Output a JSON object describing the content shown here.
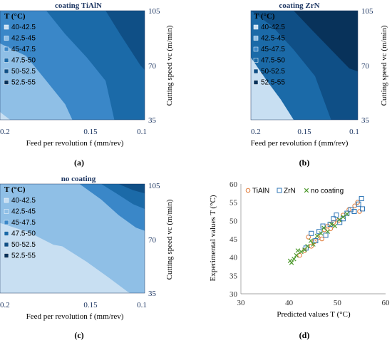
{
  "chart_data": [
    {
      "type": "contour",
      "title": "coating TiAlN",
      "panel_label": "(a)",
      "xlabel": "Feed per revolution f (mm/rev)",
      "ylabel": "Cutting speed vc (m/min)",
      "xlim": [
        0.2,
        0.1
      ],
      "x_ticks": [
        "0.2",
        "0.15",
        "0.1"
      ],
      "ylim": [
        35,
        105
      ],
      "y_ticks": [
        "105",
        "70",
        "35"
      ],
      "legend_title": "T (°C)",
      "levels": [
        "40-42.5",
        "42.5-45",
        "45-47.5",
        "47.5-50",
        "50-52.5",
        "52.5-55"
      ],
      "level_colors": [
        "#c8dff2",
        "#8fbfe6",
        "#3a87c8",
        "#1b6aa8",
        "#0f4f86",
        "#08325a"
      ],
      "boundaries": [
        {
          "level_index": 1,
          "points": [
            [
              0.2,
              46
            ],
            [
              0.2,
              40
            ],
            [
              0.193,
              35
            ]
          ]
        },
        {
          "level_index": 2,
          "points": [
            [
              0.2,
              84
            ],
            [
              0.182,
              76
            ],
            [
              0.168,
              60
            ],
            [
              0.155,
              45
            ],
            [
              0.15,
              35
            ]
          ]
        },
        {
          "level_index": 3,
          "points": [
            [
              0.168,
              105
            ],
            [
              0.155,
              90
            ],
            [
              0.14,
              75
            ],
            [
              0.127,
              60
            ],
            [
              0.121,
              35
            ]
          ]
        },
        {
          "level_index": 4,
          "points": [
            [
              0.127,
              105
            ],
            [
              0.117,
              90
            ],
            [
              0.103,
              70
            ],
            [
              0.1,
              67
            ]
          ]
        }
      ]
    },
    {
      "type": "contour",
      "title": "coating ZrN",
      "panel_label": "(b)",
      "xlabel": "Feed per revolution f (mm/rev)",
      "ylabel": "Cutting speed vc (m/min)",
      "xlim": [
        0.2,
        0.1
      ],
      "x_ticks": [
        "0.2",
        "0.15",
        "0.1"
      ],
      "ylim": [
        35,
        105
      ],
      "y_ticks": [
        "105",
        "70",
        "35"
      ],
      "legend_title": "T (°C)",
      "levels": [
        "40-42.5",
        "42.5-45",
        "45-47.5",
        "47.5-50",
        "50-52.5",
        "52.5-55"
      ],
      "level_colors": [
        "#c8dff2",
        "#8fbfe6",
        "#3a87c8",
        "#1b6aa8",
        "#0f4f86",
        "#08325a"
      ],
      "boundaries": [
        {
          "level_index": 3,
          "points": [
            [
              0.2,
              75
            ],
            [
              0.185,
              60
            ],
            [
              0.172,
              48
            ],
            [
              0.16,
              35
            ]
          ]
        },
        {
          "level_index": 4,
          "points": [
            [
              0.2,
              105
            ],
            [
              0.18,
              95
            ],
            [
              0.16,
              80
            ],
            [
              0.14,
              63
            ],
            [
              0.125,
              35
            ]
          ]
        },
        {
          "level_index": 5,
          "points": [
            [
              0.16,
              105
            ],
            [
              0.142,
              92
            ],
            [
              0.125,
              80
            ],
            [
              0.108,
              68
            ],
            [
              0.1,
              66
            ]
          ]
        }
      ]
    },
    {
      "type": "contour",
      "title": "no coating",
      "panel_label": "(c)",
      "xlabel": "Feed per revolution f (mm/rev)",
      "ylabel": "Cutting speed vc (m/min)",
      "xlim": [
        0.2,
        0.1
      ],
      "x_ticks": [
        "0.2",
        "0.15",
        "0.1"
      ],
      "ylim": [
        35,
        105
      ],
      "y_ticks": [
        "105",
        "70",
        "35"
      ],
      "legend_title": "T (°C)",
      "levels": [
        "40-42.5",
        "42.5-45",
        "45-47.5",
        "47.5-50",
        "50-52.5",
        "52.5-55"
      ],
      "level_colors": [
        "#c8dff2",
        "#8fbfe6",
        "#3a87c8",
        "#1b6aa8",
        "#0f4f86",
        "#08325a"
      ],
      "boundaries": [
        {
          "level_index": 1,
          "points": [
            [
              0.2,
              80
            ],
            [
              0.18,
              74
            ],
            [
              0.163,
              66
            ],
            [
              0.157,
              65
            ],
            [
              0.14,
              55
            ],
            [
              0.125,
              45
            ],
            [
              0.112,
              36
            ],
            [
              0.11,
              35
            ]
          ]
        },
        {
          "level_index": 2,
          "points": [
            [
              0.145,
              105
            ],
            [
              0.13,
              95
            ],
            [
              0.118,
              85
            ],
            [
              0.106,
              77
            ],
            [
              0.1,
              75
            ]
          ]
        },
        {
          "level_index": 3,
          "points": [
            [
              0.13,
              105
            ],
            [
              0.118,
              98
            ],
            [
              0.108,
              92
            ],
            [
              0.1,
              89
            ]
          ]
        },
        {
          "level_index": 4,
          "points": [
            [
              0.118,
              105
            ],
            [
              0.108,
              101
            ],
            [
              0.1,
              99
            ]
          ]
        }
      ]
    },
    {
      "type": "scatter",
      "panel_label": "(d)",
      "xlabel": "Predicted values T (°C)",
      "ylabel": "Experimental values T (°C)",
      "xlim": [
        30,
        60
      ],
      "x_ticks": [
        30,
        40,
        50,
        60
      ],
      "ylim": [
        30,
        60
      ],
      "y_ticks": [
        30,
        35,
        40,
        45,
        50,
        55,
        60
      ],
      "legend": "top-left",
      "series": [
        {
          "name": "TiAlN",
          "marker": "circle",
          "color": "#e07b39",
          "points": [
            [
              42.2,
              40.5
            ],
            [
              43.2,
              41.8
            ],
            [
              44.0,
              45.5
            ],
            [
              44.6,
              43.0
            ],
            [
              45.2,
              44.2
            ],
            [
              46.0,
              45.3
            ],
            [
              46.8,
              45.0
            ],
            [
              47.3,
              47.5
            ],
            [
              48.0,
              48.5
            ],
            [
              48.6,
              47.8
            ],
            [
              49.2,
              49.5
            ],
            [
              50.2,
              50.0
            ],
            [
              51.2,
              51.5
            ],
            [
              52.4,
              53.0
            ],
            [
              53.6,
              54.0
            ],
            [
              54.2,
              55.0
            ],
            [
              54.6,
              52.5
            ]
          ]
        },
        {
          "name": "ZrN",
          "marker": "square",
          "color": "#2e75b6",
          "points": [
            [
              43.5,
              42.5
            ],
            [
              44.6,
              46.5
            ],
            [
              45.5,
              44.5
            ],
            [
              46.2,
              47.0
            ],
            [
              47.0,
              48.5
            ],
            [
              47.6,
              46.0
            ],
            [
              48.5,
              49.0
            ],
            [
              49.2,
              50.5
            ],
            [
              49.8,
              51.5
            ],
            [
              50.5,
              49.5
            ],
            [
              51.2,
              50.5
            ],
            [
              52.0,
              52.0
            ],
            [
              52.8,
              53.0
            ],
            [
              53.5,
              52.5
            ],
            [
              54.4,
              54.5
            ],
            [
              55.0,
              56.0
            ],
            [
              55.2,
              53.2
            ]
          ]
        },
        {
          "name": "no coating",
          "marker": "x",
          "color": "#4e9a2e",
          "points": [
            [
              40.2,
              39.0
            ],
            [
              40.5,
              38.5
            ],
            [
              41.0,
              39.5
            ],
            [
              41.5,
              40.5
            ],
            [
              41.8,
              41.8
            ],
            [
              42.5,
              41.5
            ],
            [
              43.2,
              42.0
            ],
            [
              43.8,
              43.0
            ],
            [
              44.5,
              44.5
            ],
            [
              45.0,
              43.5
            ],
            [
              45.8,
              45.8
            ],
            [
              46.6,
              46.5
            ],
            [
              47.2,
              48.0
            ],
            [
              48.0,
              47.0
            ],
            [
              48.8,
              49.0
            ],
            [
              49.5,
              48.5
            ],
            [
              50.4,
              50.2
            ],
            [
              51.2,
              51.0
            ],
            [
              52.0,
              51.8
            ]
          ]
        }
      ]
    }
  ]
}
